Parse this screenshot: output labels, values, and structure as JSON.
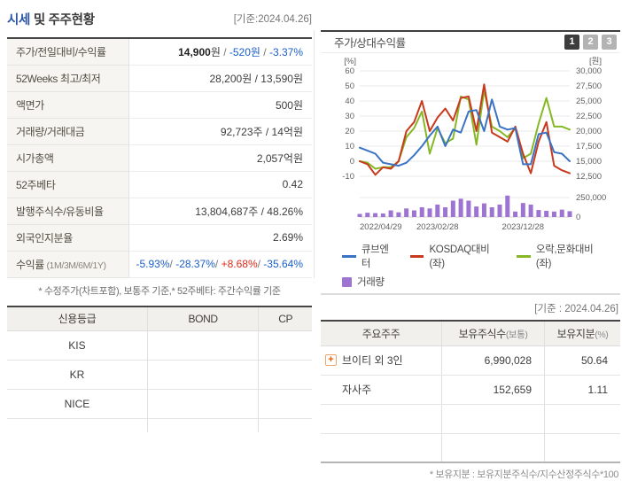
{
  "header": {
    "title_highlight": "시세",
    "title_rest": " 및 주주현황",
    "as_of": "[기준:2024.04.26]"
  },
  "info_table": {
    "rows": [
      {
        "label": "주가/전일대비/수익률",
        "parts": [
          {
            "t": "14,900",
            "c": "strong"
          },
          {
            "t": "원",
            "c": "dark"
          },
          {
            "t": " / ",
            "c": "gray"
          },
          {
            "t": "-520원",
            "c": "blue"
          },
          {
            "t": " / ",
            "c": "gray"
          },
          {
            "t": "-3.37%",
            "c": "blue"
          }
        ]
      },
      {
        "label": "52Weeks 최고/최저",
        "parts": [
          {
            "t": "28,200원 / 13,590원",
            "c": "dark"
          }
        ]
      },
      {
        "label": "액면가",
        "parts": [
          {
            "t": "500원",
            "c": "dark"
          }
        ]
      },
      {
        "label": "거래량/거래대금",
        "parts": [
          {
            "t": "92,723주 / 14억원",
            "c": "dark"
          }
        ]
      },
      {
        "label": "시가총액",
        "parts": [
          {
            "t": "2,057억원",
            "c": "dark"
          }
        ]
      },
      {
        "label": "52주베타",
        "parts": [
          {
            "t": "0.42",
            "c": "dark"
          }
        ]
      },
      {
        "label": "발행주식수/유동비율",
        "parts": [
          {
            "t": "13,804,687주 / 48.26%",
            "c": "dark"
          }
        ]
      },
      {
        "label": "외국인지분율",
        "parts": [
          {
            "t": "2.69%",
            "c": "dark"
          }
        ]
      },
      {
        "label": "수익률",
        "label_sub": "(1M/3M/6M/1Y)",
        "parts": [
          {
            "t": "-5.93%",
            "c": "blue"
          },
          {
            "t": "/ ",
            "c": "gray"
          },
          {
            "t": "-28.37%",
            "c": "blue"
          },
          {
            "t": "/ ",
            "c": "gray"
          },
          {
            "t": "+8.68%",
            "c": "red"
          },
          {
            "t": "/ ",
            "c": "gray"
          },
          {
            "t": "-35.64%",
            "c": "blue"
          }
        ]
      }
    ],
    "footnote": "* 수정주가(차트포함), 보통주 기준,* 52주베타: 주간수익률 기준"
  },
  "credit_table": {
    "headers": [
      "신용등급",
      "BOND",
      "CP"
    ],
    "rows": [
      [
        "KIS",
        "",
        ""
      ],
      [
        "KR",
        "",
        ""
      ],
      [
        "NICE",
        "",
        ""
      ],
      [
        "",
        "",
        ""
      ]
    ]
  },
  "chart_panel": {
    "title": "주가/상대수익률",
    "pages": [
      {
        "label": "1",
        "active": true
      },
      {
        "label": "2",
        "active": false
      },
      {
        "label": "3",
        "active": false
      }
    ]
  },
  "chart_data": {
    "type": "line",
    "title": "주가/상대수익률",
    "unit_left": "[%]",
    "unit_right": "[원]",
    "y_left_ticks": [
      60,
      50,
      40,
      30,
      20,
      10,
      0,
      -10
    ],
    "y_right_tick_labels": [
      "30,000",
      "27,500",
      "25,000",
      "22,500",
      "20,000",
      "17,500",
      "15,000",
      "12,500"
    ],
    "y_left_range": [
      -10,
      60
    ],
    "y_right_range": [
      12500,
      30000
    ],
    "x_ticks": [
      {
        "index": 0,
        "label": "2022/04/29"
      },
      {
        "index": 10,
        "label": "2023/02/28"
      },
      {
        "index": 21,
        "label": "2023/12/28"
      }
    ],
    "series": [
      {
        "name": "큐브엔터",
        "axis": "right",
        "unit": "원",
        "color": "#3a73c4",
        "values_pct": [
          9,
          7,
          5,
          -1,
          -2,
          -3,
          -1,
          4,
          10,
          17,
          23,
          10,
          21,
          19,
          33,
          34,
          20,
          41,
          23,
          21,
          22,
          -2,
          -2,
          18,
          19,
          6,
          5,
          0
        ],
        "values_won": [
          17250,
          16750,
          16250,
          14750,
          14500,
          14250,
          14750,
          16000,
          17500,
          19250,
          20750,
          17500,
          20250,
          19750,
          23250,
          23500,
          20000,
          25250,
          20750,
          20250,
          20500,
          14500,
          14500,
          19500,
          19750,
          16500,
          16250,
          14900
        ]
      },
      {
        "name": "KOSDAQ대비(좌)",
        "axis": "left",
        "unit": "%",
        "color": "#c83a1d",
        "values": [
          0,
          -2,
          -9,
          -4,
          -5,
          0,
          20,
          26,
          40,
          20,
          29,
          35,
          27,
          42,
          43,
          20,
          51,
          19,
          16,
          13,
          23,
          5,
          -8,
          13,
          26,
          -3,
          -6,
          -8
        ]
      },
      {
        "name": "오락,문화대비(좌)",
        "axis": "left",
        "unit": "%",
        "color": "#86b826",
        "values": [
          0,
          -1,
          -5,
          -4,
          -4,
          0,
          16,
          22,
          33,
          5,
          22,
          12,
          15,
          43,
          41,
          11,
          47,
          23,
          20,
          16,
          22,
          2,
          5,
          25,
          42,
          23,
          23,
          21
        ]
      }
    ],
    "volume": {
      "name": "거래량",
      "color": "#9d74d2",
      "axis_max": 250000,
      "tick_labels": [
        "250,000",
        "0"
      ],
      "values": [
        40000,
        55000,
        50000,
        45000,
        85000,
        60000,
        110000,
        85000,
        125000,
        110000,
        160000,
        125000,
        210000,
        235000,
        210000,
        135000,
        175000,
        125000,
        160000,
        275000,
        70000,
        180000,
        160000,
        90000,
        80000,
        70000,
        95000,
        75000
      ]
    },
    "legend": [
      {
        "label": "큐브엔터",
        "color": "#3a73c4",
        "swatch": "line",
        "row": 1
      },
      {
        "label": "KOSDAQ대비(좌)",
        "color": "#c83a1d",
        "swatch": "line",
        "row": 1
      },
      {
        "label": "오락,문화대비(좌)",
        "color": "#86b826",
        "swatch": "line",
        "row": 1
      },
      {
        "label": "거래량",
        "color": "#9d74d2",
        "swatch": "square",
        "row": 2
      }
    ]
  },
  "shareholders": {
    "as_of": "[기준 : 2024.04.26]",
    "headers": [
      {
        "t": "주요주주",
        "sub": ""
      },
      {
        "t": "보유주식수",
        "sub": "(보통)"
      },
      {
        "t": "보유지분",
        "sub": "(%)"
      }
    ],
    "rows": [
      {
        "plus_icon": true,
        "name": "브이티 외 3인",
        "shares": "6,990,028",
        "ratio": "50.64"
      },
      {
        "plus_icon": false,
        "name": "자사주",
        "shares": "152,659",
        "ratio": "1.11"
      },
      {
        "plus_icon": false,
        "name": "",
        "shares": "",
        "ratio": ""
      },
      {
        "plus_icon": false,
        "name": "",
        "shares": "",
        "ratio": ""
      }
    ],
    "plus_icon_glyph": "+",
    "footnote": "* 보유지분 : 보유지분주식수/지수산정주식수*100"
  },
  "colors": {
    "title_blue": "#2b55a5",
    "text_blue": "#1b5fc8",
    "text_red": "#de2b19",
    "line_blue": "#3a73c4",
    "line_red": "#c83a1d",
    "line_green": "#86b826",
    "volume_purple": "#9d74d2"
  }
}
